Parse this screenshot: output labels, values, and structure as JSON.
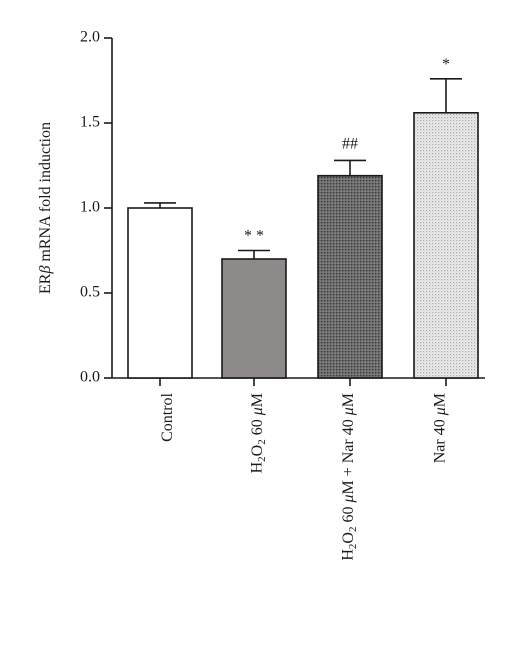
{
  "chart_data": {
    "type": "bar",
    "title": "",
    "xlabel": "",
    "ylabel": "ERβ mRNA fold induction",
    "ylim": [
      0,
      2.0
    ],
    "yticks": [
      "0.0",
      "0.5",
      "1.0",
      "1.5",
      "2.0"
    ],
    "categories": [
      "Control",
      "H2O2 60 μM",
      "H2O2 60 μM + Nar 40 μM",
      "Nar 40 μM"
    ],
    "values": [
      1.0,
      0.7,
      1.19,
      1.56
    ],
    "errors": [
      0.03,
      0.05,
      0.09,
      0.2
    ],
    "significance": [
      "",
      "**",
      "##",
      "*"
    ],
    "bar_fills": [
      "white",
      "dark-gray",
      "dark-dotted",
      "light-dotted"
    ],
    "grid": false,
    "legend": "none"
  }
}
